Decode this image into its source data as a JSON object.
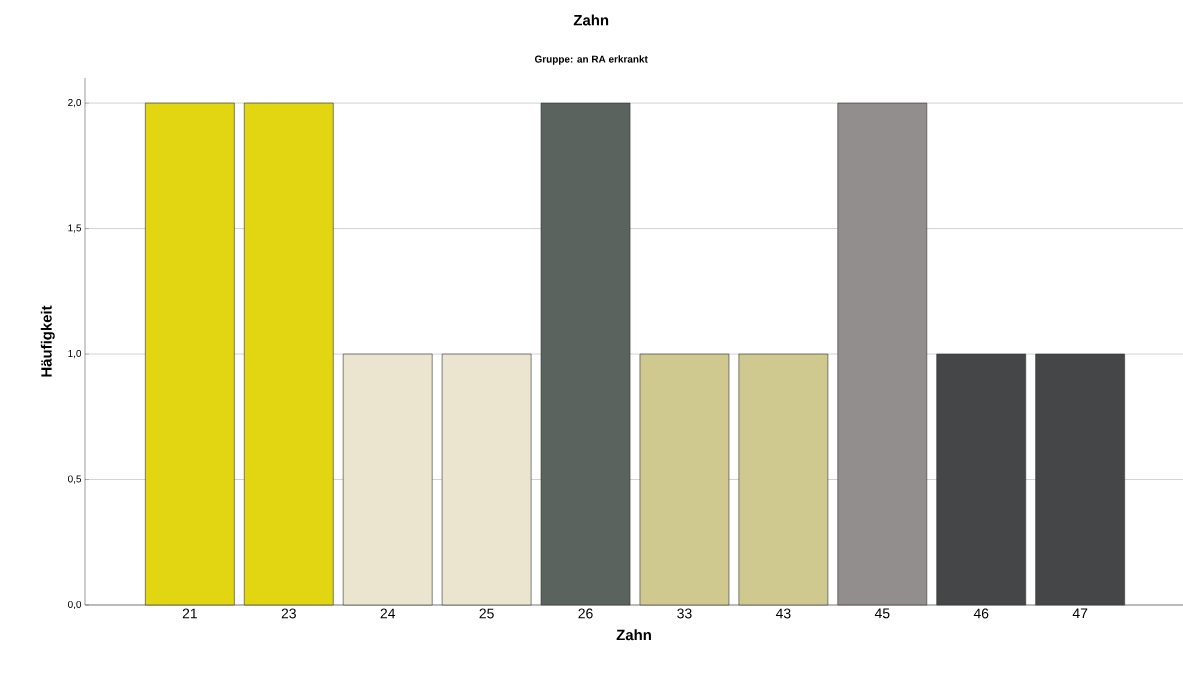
{
  "chart_data": {
    "type": "bar",
    "title": "Zahn",
    "subtitle": "Gruppe: an RA erkrankt",
    "xlabel": "Zahn",
    "ylabel": "Häufigkeit",
    "categories": [
      "21",
      "23",
      "24",
      "25",
      "26",
      "33",
      "43",
      "45",
      "46",
      "47"
    ],
    "values": [
      2,
      2,
      1,
      1,
      2,
      1,
      1,
      2,
      1,
      1
    ],
    "colors": [
      "#e2d511",
      "#e2d511",
      "#ebe5d0",
      "#ebe5d0",
      "#5a635d",
      "#cfc98f",
      "#cfc98f",
      "#928e8d",
      "#454647",
      "#454647"
    ],
    "ylim": [
      0,
      2.1
    ],
    "yticks": [
      {
        "value": 0,
        "label": "0,0"
      },
      {
        "value": 0.5,
        "label": "0,5"
      },
      {
        "value": 1,
        "label": "1,0"
      },
      {
        "value": 1.5,
        "label": "1,5"
      },
      {
        "value": 2,
        "label": "2,0"
      }
    ],
    "grid": "y"
  }
}
